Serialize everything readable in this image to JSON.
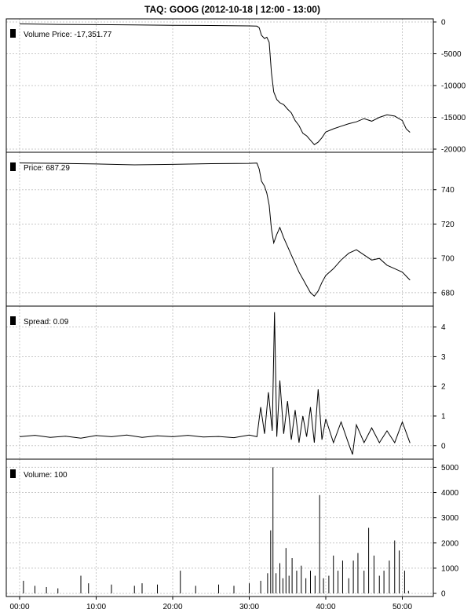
{
  "chart_data": {
    "type": "line",
    "title": "TAQ: GOOG (2012-10-18 | 12:00 - 13:00)",
    "x_ticks": [
      "00:00",
      "10:00",
      "20:00",
      "30:00",
      "40:00",
      "50:00"
    ],
    "x_range": [
      0,
      52
    ],
    "grid": true,
    "panels": [
      {
        "id": "volume-price",
        "type": "line",
        "legend": "Volume Price: -17,351.77",
        "ylim": [
          -20000,
          0
        ],
        "y_ticks": [
          "0",
          "-5000",
          "-10000",
          "-15000",
          "-20000"
        ],
        "y_values": [
          0,
          -5000,
          -10000,
          -15000,
          -20000
        ],
        "series": [
          [
            0,
            -300
          ],
          [
            5,
            -380
          ],
          [
            10,
            -420
          ],
          [
            15,
            -470
          ],
          [
            20,
            -520
          ],
          [
            25,
            -560
          ],
          [
            30,
            -620
          ],
          [
            31,
            -650
          ],
          [
            31.3,
            -900
          ],
          [
            31.6,
            -2100
          ],
          [
            32,
            -2600
          ],
          [
            32.3,
            -2400
          ],
          [
            32.6,
            -3200
          ],
          [
            32.9,
            -8000
          ],
          [
            33.2,
            -11000
          ],
          [
            33.6,
            -12200
          ],
          [
            34,
            -12700
          ],
          [
            34.5,
            -13000
          ],
          [
            35,
            -13700
          ],
          [
            35.5,
            -14300
          ],
          [
            36,
            -15500
          ],
          [
            36.5,
            -16300
          ],
          [
            37,
            -17500
          ],
          [
            37.5,
            -17900
          ],
          [
            38,
            -18600
          ],
          [
            38.5,
            -19300
          ],
          [
            39,
            -18900
          ],
          [
            39.5,
            -18200
          ],
          [
            40,
            -17300
          ],
          [
            41,
            -16800
          ],
          [
            42,
            -16400
          ],
          [
            43,
            -16000
          ],
          [
            44,
            -15700
          ],
          [
            45,
            -15200
          ],
          [
            46,
            -15600
          ],
          [
            47,
            -15000
          ],
          [
            48,
            -14600
          ],
          [
            49,
            -14800
          ],
          [
            50,
            -15500
          ],
          [
            50.5,
            -16800
          ],
          [
            51,
            -17352
          ]
        ]
      },
      {
        "id": "price",
        "type": "line",
        "legend": "Price: 687.29",
        "ylim": [
          674,
          760
        ],
        "y_ticks": [
          "740",
          "720",
          "700",
          "680"
        ],
        "y_values": [
          740,
          720,
          700,
          680
        ],
        "series": [
          [
            0,
            755.6
          ],
          [
            5,
            755.4
          ],
          [
            10,
            755
          ],
          [
            15,
            754.5
          ],
          [
            20,
            754.8
          ],
          [
            25,
            755.2
          ],
          [
            30,
            755.4
          ],
          [
            31,
            755.5
          ],
          [
            31.3,
            752
          ],
          [
            31.6,
            745
          ],
          [
            32,
            742
          ],
          [
            32.3,
            738
          ],
          [
            32.6,
            731
          ],
          [
            32.9,
            717
          ],
          [
            33.2,
            709
          ],
          [
            33.6,
            714
          ],
          [
            34,
            718
          ],
          [
            34.5,
            712
          ],
          [
            35,
            707
          ],
          [
            35.5,
            702
          ],
          [
            36,
            697
          ],
          [
            36.5,
            692
          ],
          [
            37,
            688
          ],
          [
            37.5,
            684
          ],
          [
            38,
            680
          ],
          [
            38.5,
            678
          ],
          [
            39,
            681
          ],
          [
            39.5,
            686
          ],
          [
            40,
            690
          ],
          [
            41,
            694
          ],
          [
            42,
            699
          ],
          [
            43,
            703
          ],
          [
            44,
            705
          ],
          [
            45,
            702
          ],
          [
            46,
            699
          ],
          [
            47,
            700
          ],
          [
            48,
            696
          ],
          [
            49,
            694
          ],
          [
            50,
            692
          ],
          [
            51,
            687.29
          ]
        ]
      },
      {
        "id": "spread",
        "type": "line",
        "legend": "Spread: 0.09",
        "ylim": [
          -0.35,
          4.6
        ],
        "y_ticks": [
          "4",
          "3",
          "2",
          "1",
          "0"
        ],
        "y_values": [
          4,
          3,
          2,
          1,
          0
        ],
        "series": [
          [
            0,
            0.3
          ],
          [
            2,
            0.35
          ],
          [
            4,
            0.28
          ],
          [
            6,
            0.32
          ],
          [
            8,
            0.25
          ],
          [
            10,
            0.34
          ],
          [
            12,
            0.3
          ],
          [
            14,
            0.36
          ],
          [
            16,
            0.28
          ],
          [
            18,
            0.33
          ],
          [
            20,
            0.3
          ],
          [
            22,
            0.35
          ],
          [
            24,
            0.29
          ],
          [
            26,
            0.31
          ],
          [
            28,
            0.27
          ],
          [
            30,
            0.36
          ],
          [
            31,
            0.3
          ],
          [
            31.5,
            1.3
          ],
          [
            32,
            0.4
          ],
          [
            32.5,
            1.8
          ],
          [
            33,
            0.5
          ],
          [
            33.3,
            4.5
          ],
          [
            33.6,
            0.3
          ],
          [
            34,
            2.2
          ],
          [
            34.5,
            0.4
          ],
          [
            35,
            1.5
          ],
          [
            35.5,
            0.2
          ],
          [
            36,
            1.2
          ],
          [
            36.5,
            0.1
          ],
          [
            37,
            1.0
          ],
          [
            37.5,
            0.3
          ],
          [
            38,
            1.3
          ],
          [
            38.5,
            0.1
          ],
          [
            39,
            1.9
          ],
          [
            39.5,
            0.2
          ],
          [
            40,
            0.9
          ],
          [
            41,
            0.1
          ],
          [
            42,
            0.8
          ],
          [
            43,
            0.05
          ],
          [
            43.5,
            -0.3
          ],
          [
            44,
            0.7
          ],
          [
            45,
            0.1
          ],
          [
            46,
            0.6
          ],
          [
            47,
            0.1
          ],
          [
            48,
            0.5
          ],
          [
            49,
            0.1
          ],
          [
            50,
            0.8
          ],
          [
            51,
            0.09
          ]
        ]
      },
      {
        "id": "volume",
        "type": "bar",
        "legend": "Volume: 100",
        "ylim": [
          0,
          5200
        ],
        "y_ticks": [
          "5000",
          "4000",
          "3000",
          "2000",
          "1000",
          "0"
        ],
        "y_values": [
          5000,
          4000,
          3000,
          2000,
          1000,
          0
        ],
        "series": [
          [
            0.5,
            500
          ],
          [
            2,
            300
          ],
          [
            3.5,
            250
          ],
          [
            5,
            200
          ],
          [
            8,
            700
          ],
          [
            9,
            400
          ],
          [
            12,
            350
          ],
          [
            15,
            300
          ],
          [
            16,
            400
          ],
          [
            18,
            350
          ],
          [
            21,
            900
          ],
          [
            23,
            300
          ],
          [
            26,
            350
          ],
          [
            28,
            300
          ],
          [
            30,
            400
          ],
          [
            31.5,
            500
          ],
          [
            32.4,
            800
          ],
          [
            32.8,
            2500
          ],
          [
            33.1,
            5000
          ],
          [
            33.5,
            800
          ],
          [
            34,
            1200
          ],
          [
            34.4,
            600
          ],
          [
            34.8,
            1800
          ],
          [
            35.2,
            700
          ],
          [
            35.6,
            1400
          ],
          [
            36.2,
            900
          ],
          [
            36.8,
            1100
          ],
          [
            37.4,
            600
          ],
          [
            38,
            900
          ],
          [
            38.6,
            700
          ],
          [
            39.2,
            3900
          ],
          [
            39.7,
            600
          ],
          [
            40.4,
            700
          ],
          [
            41,
            1500
          ],
          [
            41.6,
            900
          ],
          [
            42.2,
            1300
          ],
          [
            43,
            600
          ],
          [
            43.6,
            1300
          ],
          [
            44.2,
            1600
          ],
          [
            45,
            900
          ],
          [
            45.6,
            2600
          ],
          [
            46.3,
            1500
          ],
          [
            47,
            700
          ],
          [
            47.6,
            900
          ],
          [
            48.3,
            1300
          ],
          [
            49,
            2100
          ],
          [
            49.6,
            1700
          ],
          [
            50.3,
            900
          ],
          [
            50.8,
            100
          ]
        ]
      }
    ]
  }
}
